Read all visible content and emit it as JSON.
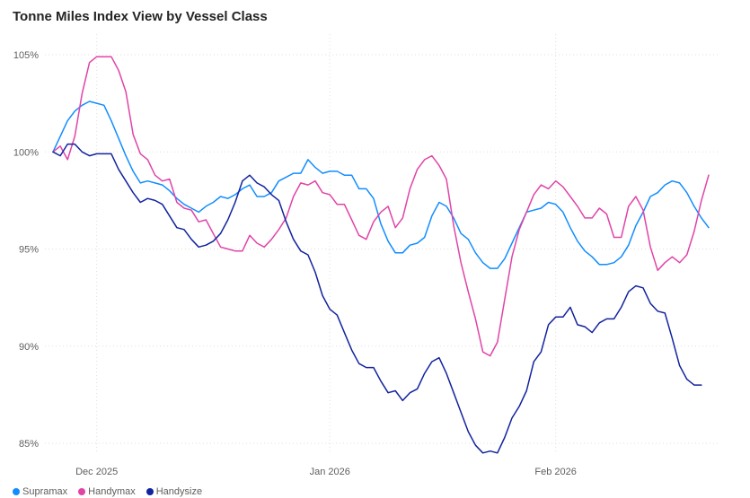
{
  "chart_data": {
    "type": "line",
    "title": "Tonne Miles Index View by Vessel Class",
    "xlabel": "",
    "ylabel": "",
    "ylim": [
      84.5,
      107
    ],
    "yticks": [
      85,
      90,
      95,
      100,
      105
    ],
    "ytick_labels": [
      "85%",
      "90%",
      "95%",
      "100%",
      "105%"
    ],
    "x_range": [
      "2025-11-20",
      "2026-02-27"
    ],
    "x_ticks": [
      {
        "date": "2025-11-30",
        "label": "Dec 2025"
      },
      {
        "date": "2026-01-01",
        "label": "Jan 2026"
      },
      {
        "date": "2026-02-01",
        "label": "Feb 2026"
      }
    ],
    "grid": true,
    "legend_position": "bottom-left",
    "series": [
      {
        "name": "Supramax",
        "color": "#118DFF",
        "points": [
          [
            "2025-11-24",
            100.0
          ],
          [
            "2025-11-25",
            100.8
          ],
          [
            "2025-11-26",
            101.6
          ],
          [
            "2025-11-27",
            102.1
          ],
          [
            "2025-11-28",
            102.4
          ],
          [
            "2025-11-29",
            102.6
          ],
          [
            "2025-11-30",
            102.5
          ],
          [
            "2025-12-01",
            102.4
          ],
          [
            "2025-12-02",
            101.6
          ],
          [
            "2025-12-03",
            100.7
          ],
          [
            "2025-12-04",
            99.8
          ],
          [
            "2025-12-05",
            99.0
          ],
          [
            "2025-12-06",
            98.4
          ],
          [
            "2025-12-07",
            98.5
          ],
          [
            "2025-12-08",
            98.4
          ],
          [
            "2025-12-09",
            98.3
          ],
          [
            "2025-12-10",
            98.0
          ],
          [
            "2025-12-11",
            97.6
          ],
          [
            "2025-12-12",
            97.3
          ],
          [
            "2025-12-13",
            97.1
          ],
          [
            "2025-12-14",
            96.9
          ],
          [
            "2025-12-15",
            97.2
          ],
          [
            "2025-12-16",
            97.4
          ],
          [
            "2025-12-17",
            97.7
          ],
          [
            "2025-12-18",
            97.6
          ],
          [
            "2025-12-19",
            97.8
          ],
          [
            "2025-12-20",
            98.1
          ],
          [
            "2025-12-21",
            98.3
          ],
          [
            "2025-12-22",
            97.7
          ],
          [
            "2025-12-23",
            97.7
          ],
          [
            "2025-12-24",
            97.9
          ],
          [
            "2025-12-25",
            98.5
          ],
          [
            "2025-12-26",
            98.7
          ],
          [
            "2025-12-27",
            98.9
          ],
          [
            "2025-12-28",
            98.9
          ],
          [
            "2025-12-29",
            99.6
          ],
          [
            "2025-12-30",
            99.2
          ],
          [
            "2025-12-31",
            98.9
          ],
          [
            "2026-01-01",
            99.0
          ],
          [
            "2026-01-02",
            99.0
          ],
          [
            "2026-01-03",
            98.8
          ],
          [
            "2026-01-04",
            98.8
          ],
          [
            "2026-01-05",
            98.1
          ],
          [
            "2026-01-06",
            98.1
          ],
          [
            "2026-01-07",
            97.6
          ],
          [
            "2026-01-08",
            96.3
          ],
          [
            "2026-01-09",
            95.4
          ],
          [
            "2026-01-10",
            94.8
          ],
          [
            "2026-01-11",
            94.8
          ],
          [
            "2026-01-12",
            95.2
          ],
          [
            "2026-01-13",
            95.3
          ],
          [
            "2026-01-14",
            95.6
          ],
          [
            "2026-01-15",
            96.7
          ],
          [
            "2026-01-16",
            97.4
          ],
          [
            "2026-01-17",
            97.2
          ],
          [
            "2026-01-18",
            96.6
          ],
          [
            "2026-01-19",
            95.8
          ],
          [
            "2026-01-20",
            95.5
          ],
          [
            "2026-01-21",
            94.8
          ],
          [
            "2026-01-22",
            94.3
          ],
          [
            "2026-01-23",
            94.0
          ],
          [
            "2026-01-24",
            94.0
          ],
          [
            "2026-01-25",
            94.5
          ],
          [
            "2026-01-26",
            95.3
          ],
          [
            "2026-01-27",
            96.1
          ],
          [
            "2026-01-28",
            96.9
          ],
          [
            "2026-01-29",
            97.0
          ],
          [
            "2026-01-30",
            97.1
          ],
          [
            "2026-01-31",
            97.4
          ],
          [
            "2026-02-01",
            97.3
          ],
          [
            "2026-02-02",
            96.9
          ],
          [
            "2026-02-03",
            96.1
          ],
          [
            "2026-02-04",
            95.4
          ],
          [
            "2026-02-05",
            94.9
          ],
          [
            "2026-02-06",
            94.6
          ],
          [
            "2026-02-07",
            94.2
          ],
          [
            "2026-02-08",
            94.2
          ],
          [
            "2026-02-09",
            94.3
          ],
          [
            "2026-02-10",
            94.6
          ],
          [
            "2026-02-11",
            95.2
          ],
          [
            "2026-02-12",
            96.2
          ],
          [
            "2026-02-13",
            96.9
          ],
          [
            "2026-02-14",
            97.7
          ],
          [
            "2026-02-15",
            97.9
          ],
          [
            "2026-02-16",
            98.3
          ],
          [
            "2026-02-17",
            98.5
          ],
          [
            "2026-02-18",
            98.4
          ],
          [
            "2026-02-19",
            97.9
          ],
          [
            "2026-02-20",
            97.2
          ],
          [
            "2026-02-21",
            96.6
          ],
          [
            "2026-02-22",
            96.1
          ]
        ]
      },
      {
        "name": "Handymax",
        "color": "#E044A7",
        "points": [
          [
            "2025-11-24",
            100.0
          ],
          [
            "2025-11-25",
            100.3
          ],
          [
            "2025-11-26",
            99.6
          ],
          [
            "2025-11-27",
            100.8
          ],
          [
            "2025-11-28",
            103.0
          ],
          [
            "2025-11-29",
            104.6
          ],
          [
            "2025-11-30",
            104.9
          ],
          [
            "2025-12-01",
            104.9
          ],
          [
            "2025-12-02",
            104.9
          ],
          [
            "2025-12-03",
            104.2
          ],
          [
            "2025-12-04",
            103.1
          ],
          [
            "2025-12-05",
            100.9
          ],
          [
            "2025-12-06",
            99.9
          ],
          [
            "2025-12-07",
            99.6
          ],
          [
            "2025-12-08",
            98.8
          ],
          [
            "2025-12-09",
            98.5
          ],
          [
            "2025-12-10",
            98.6
          ],
          [
            "2025-12-11",
            97.4
          ],
          [
            "2025-12-12",
            97.1
          ],
          [
            "2025-12-13",
            97.0
          ],
          [
            "2025-12-14",
            96.4
          ],
          [
            "2025-12-15",
            96.5
          ],
          [
            "2025-12-16",
            95.8
          ],
          [
            "2025-12-17",
            95.1
          ],
          [
            "2025-12-18",
            95.0
          ],
          [
            "2025-12-19",
            94.9
          ],
          [
            "2025-12-20",
            94.9
          ],
          [
            "2025-12-21",
            95.7
          ],
          [
            "2025-12-22",
            95.3
          ],
          [
            "2025-12-23",
            95.1
          ],
          [
            "2025-12-24",
            95.5
          ],
          [
            "2025-12-25",
            96.0
          ],
          [
            "2025-12-26",
            96.6
          ],
          [
            "2025-12-27",
            97.7
          ],
          [
            "2025-12-28",
            98.4
          ],
          [
            "2025-12-29",
            98.3
          ],
          [
            "2025-12-30",
            98.5
          ],
          [
            "2025-12-31",
            97.9
          ],
          [
            "2026-01-01",
            97.8
          ],
          [
            "2026-01-02",
            97.3
          ],
          [
            "2026-01-03",
            97.3
          ],
          [
            "2026-01-04",
            96.5
          ],
          [
            "2026-01-05",
            95.7
          ],
          [
            "2026-01-06",
            95.5
          ],
          [
            "2026-01-07",
            96.4
          ],
          [
            "2026-01-08",
            96.9
          ],
          [
            "2026-01-09",
            97.2
          ],
          [
            "2026-01-10",
            96.1
          ],
          [
            "2026-01-11",
            96.6
          ],
          [
            "2026-01-12",
            98.1
          ],
          [
            "2026-01-13",
            99.1
          ],
          [
            "2026-01-14",
            99.6
          ],
          [
            "2026-01-15",
            99.8
          ],
          [
            "2026-01-16",
            99.3
          ],
          [
            "2026-01-17",
            98.6
          ],
          [
            "2026-01-18",
            96.2
          ],
          [
            "2026-01-19",
            94.3
          ],
          [
            "2026-01-20",
            92.8
          ],
          [
            "2026-01-21",
            91.4
          ],
          [
            "2026-01-22",
            89.7
          ],
          [
            "2026-01-23",
            89.5
          ],
          [
            "2026-01-24",
            90.2
          ],
          [
            "2026-01-25",
            92.4
          ],
          [
            "2026-01-26",
            94.6
          ],
          [
            "2026-01-27",
            96.0
          ],
          [
            "2026-01-28",
            96.9
          ],
          [
            "2026-01-29",
            97.8
          ],
          [
            "2026-01-30",
            98.3
          ],
          [
            "2026-01-31",
            98.1
          ],
          [
            "2026-02-01",
            98.5
          ],
          [
            "2026-02-02",
            98.2
          ],
          [
            "2026-02-03",
            97.7
          ],
          [
            "2026-02-04",
            97.2
          ],
          [
            "2026-02-05",
            96.6
          ],
          [
            "2026-02-06",
            96.6
          ],
          [
            "2026-02-07",
            97.1
          ],
          [
            "2026-02-08",
            96.8
          ],
          [
            "2026-02-09",
            95.6
          ],
          [
            "2026-02-10",
            95.6
          ],
          [
            "2026-02-11",
            97.2
          ],
          [
            "2026-02-12",
            97.7
          ],
          [
            "2026-02-13",
            97.0
          ],
          [
            "2026-02-14",
            95.1
          ],
          [
            "2026-02-15",
            93.9
          ],
          [
            "2026-02-16",
            94.3
          ],
          [
            "2026-02-17",
            94.6
          ],
          [
            "2026-02-18",
            94.3
          ],
          [
            "2026-02-19",
            94.7
          ],
          [
            "2026-02-20",
            95.9
          ],
          [
            "2026-02-21",
            97.5
          ],
          [
            "2026-02-22",
            98.8
          ]
        ]
      },
      {
        "name": "Handysize",
        "color": "#12239E",
        "points": [
          [
            "2025-11-24",
            100.0
          ],
          [
            "2025-11-25",
            99.8
          ],
          [
            "2025-11-26",
            100.4
          ],
          [
            "2025-11-27",
            100.4
          ],
          [
            "2025-11-28",
            100.0
          ],
          [
            "2025-11-29",
            99.8
          ],
          [
            "2025-11-30",
            99.9
          ],
          [
            "2025-12-01",
            99.9
          ],
          [
            "2025-12-02",
            99.9
          ],
          [
            "2025-12-03",
            99.1
          ],
          [
            "2025-12-04",
            98.5
          ],
          [
            "2025-12-05",
            97.9
          ],
          [
            "2025-12-06",
            97.4
          ],
          [
            "2025-12-07",
            97.6
          ],
          [
            "2025-12-08",
            97.5
          ],
          [
            "2025-12-09",
            97.3
          ],
          [
            "2025-12-10",
            96.7
          ],
          [
            "2025-12-11",
            96.1
          ],
          [
            "2025-12-12",
            96.0
          ],
          [
            "2025-12-13",
            95.5
          ],
          [
            "2025-12-14",
            95.1
          ],
          [
            "2025-12-15",
            95.2
          ],
          [
            "2025-12-16",
            95.4
          ],
          [
            "2025-12-17",
            95.8
          ],
          [
            "2025-12-18",
            96.5
          ],
          [
            "2025-12-19",
            97.4
          ],
          [
            "2025-12-20",
            98.5
          ],
          [
            "2025-12-21",
            98.8
          ],
          [
            "2025-12-22",
            98.4
          ],
          [
            "2025-12-23",
            98.2
          ],
          [
            "2025-12-24",
            97.8
          ],
          [
            "2025-12-25",
            97.5
          ],
          [
            "2025-12-26",
            96.4
          ],
          [
            "2025-12-27",
            95.5
          ],
          [
            "2025-12-28",
            94.9
          ],
          [
            "2025-12-29",
            94.7
          ],
          [
            "2025-12-30",
            93.8
          ],
          [
            "2025-12-31",
            92.6
          ],
          [
            "2026-01-01",
            91.9
          ],
          [
            "2026-01-02",
            91.6
          ],
          [
            "2026-01-03",
            90.7
          ],
          [
            "2026-01-04",
            89.8
          ],
          [
            "2026-01-05",
            89.1
          ],
          [
            "2026-01-06",
            88.9
          ],
          [
            "2026-01-07",
            88.9
          ],
          [
            "2026-01-08",
            88.2
          ],
          [
            "2026-01-09",
            87.6
          ],
          [
            "2026-01-10",
            87.7
          ],
          [
            "2026-01-11",
            87.2
          ],
          [
            "2026-01-12",
            87.6
          ],
          [
            "2026-01-13",
            87.8
          ],
          [
            "2026-01-14",
            88.6
          ],
          [
            "2026-01-15",
            89.2
          ],
          [
            "2026-01-16",
            89.4
          ],
          [
            "2026-01-17",
            88.6
          ],
          [
            "2026-01-18",
            87.6
          ],
          [
            "2026-01-19",
            86.6
          ],
          [
            "2026-01-20",
            85.6
          ],
          [
            "2026-01-21",
            84.9
          ],
          [
            "2026-01-22",
            84.5
          ],
          [
            "2026-01-23",
            84.6
          ],
          [
            "2026-01-24",
            84.5
          ],
          [
            "2026-01-25",
            85.3
          ],
          [
            "2026-01-26",
            86.3
          ],
          [
            "2026-01-27",
            86.9
          ],
          [
            "2026-01-28",
            87.7
          ],
          [
            "2026-01-29",
            89.2
          ],
          [
            "2026-01-30",
            89.7
          ],
          [
            "2026-01-31",
            91.1
          ],
          [
            "2026-02-01",
            91.5
          ],
          [
            "2026-02-02",
            91.5
          ],
          [
            "2026-02-03",
            92.0
          ],
          [
            "2026-02-04",
            91.1
          ],
          [
            "2026-02-05",
            91.0
          ],
          [
            "2026-02-06",
            90.7
          ],
          [
            "2026-02-07",
            91.2
          ],
          [
            "2026-02-08",
            91.4
          ],
          [
            "2026-02-09",
            91.4
          ],
          [
            "2026-02-10",
            92.0
          ],
          [
            "2026-02-11",
            92.8
          ],
          [
            "2026-02-12",
            93.1
          ],
          [
            "2026-02-13",
            93.0
          ],
          [
            "2026-02-14",
            92.2
          ],
          [
            "2026-02-15",
            91.8
          ],
          [
            "2026-02-16",
            91.7
          ],
          [
            "2026-02-17",
            90.4
          ],
          [
            "2026-02-18",
            89.0
          ],
          [
            "2026-02-19",
            88.3
          ],
          [
            "2026-02-20",
            88.0
          ],
          [
            "2026-02-21",
            88.0
          ]
        ]
      }
    ]
  }
}
